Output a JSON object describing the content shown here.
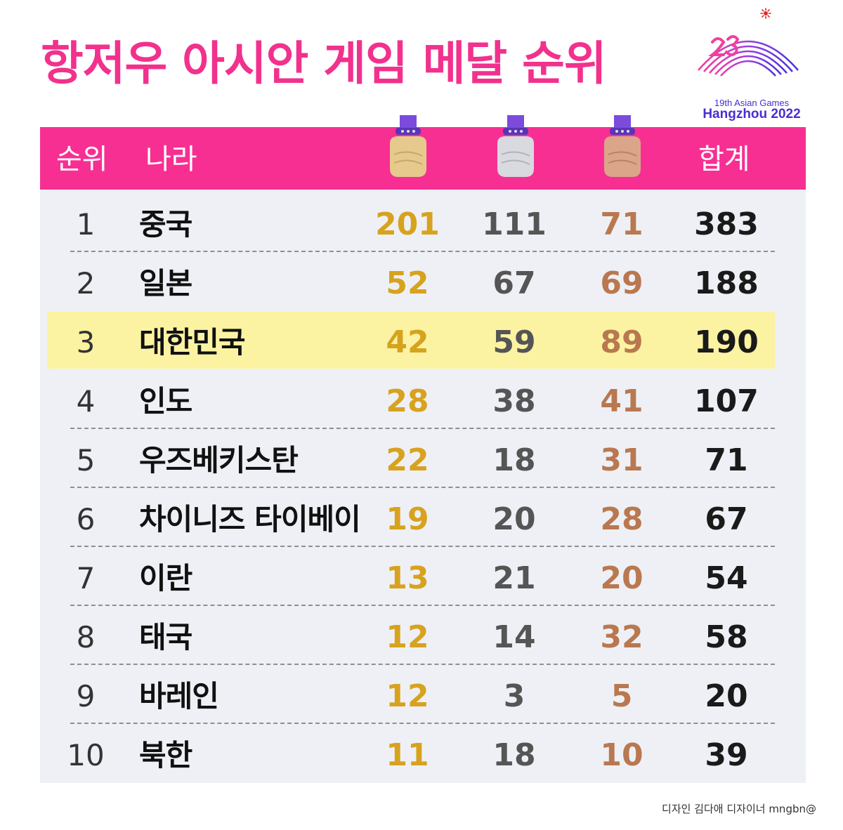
{
  "title": "항저우 아시안 게임 메달 순위",
  "logo": {
    "line1": "19th Asian Games",
    "line2": "Hangzhou 2022",
    "icon": "hangzhou-2022-logo-icon"
  },
  "header": {
    "rank": "순위",
    "country": "나라",
    "gold_icon": "gold-medal-icon",
    "silver_icon": "silver-medal-icon",
    "bronze_icon": "bronze-medal-icon",
    "total": "합계"
  },
  "colors": {
    "accent": "#f72f93",
    "gold": "#d7a21e",
    "silver": "#555555",
    "bronze": "#b9784f",
    "highlight": "#fbf3a2",
    "table_bg": "#eef0f5"
  },
  "rows": [
    {
      "rank": "1",
      "country": "중국",
      "gold": "201",
      "silver": "111",
      "bronze": "71",
      "total": "383"
    },
    {
      "rank": "2",
      "country": "일본",
      "gold": "52",
      "silver": "67",
      "bronze": "69",
      "total": "188"
    },
    {
      "rank": "3",
      "country": "대한민국",
      "gold": "42",
      "silver": "59",
      "bronze": "89",
      "total": "190",
      "highlighted": true
    },
    {
      "rank": "4",
      "country": "인도",
      "gold": "28",
      "silver": "38",
      "bronze": "41",
      "total": "107"
    },
    {
      "rank": "5",
      "country": "우즈베키스탄",
      "gold": "22",
      "silver": "18",
      "bronze": "31",
      "total": "71"
    },
    {
      "rank": "6",
      "country": "차이니즈 타이베이",
      "gold": "19",
      "silver": "20",
      "bronze": "28",
      "total": "67"
    },
    {
      "rank": "7",
      "country": "이란",
      "gold": "13",
      "silver": "21",
      "bronze": "20",
      "total": "54"
    },
    {
      "rank": "8",
      "country": "태국",
      "gold": "12",
      "silver": "14",
      "bronze": "32",
      "total": "58"
    },
    {
      "rank": "9",
      "country": "바레인",
      "gold": "12",
      "silver": "3",
      "bronze": "5",
      "total": "20"
    },
    {
      "rank": "10",
      "country": "북한",
      "gold": "11",
      "silver": "18",
      "bronze": "10",
      "total": "39"
    }
  ],
  "credit": "디자인 김다애 디자이너 mngbn@"
}
